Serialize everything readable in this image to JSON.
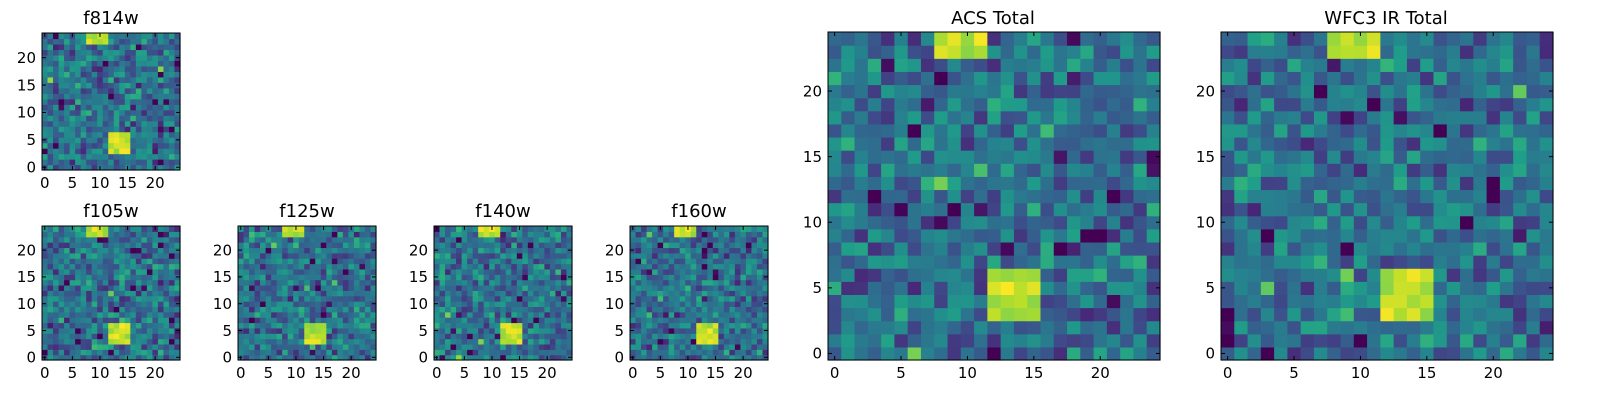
{
  "chart_data": [
    {
      "type": "heatmap",
      "title": "f814w",
      "colormap": "viridis",
      "grid_size": [
        25,
        25
      ],
      "xticks": [
        "0",
        "5",
        "10",
        "15",
        "20"
      ],
      "yticks": [
        "0",
        "5",
        "10",
        "15",
        "20"
      ],
      "xlim": [
        -0.5,
        24.5
      ],
      "ylim": [
        -0.5,
        24.5
      ],
      "grid": false,
      "bright_regions": [
        {
          "x": [
            8,
            11
          ],
          "y": [
            23,
            24
          ]
        },
        {
          "x": [
            12,
            15
          ],
          "y": [
            3,
            6
          ]
        }
      ]
    },
    {
      "type": "heatmap",
      "title": "f105w",
      "colormap": "viridis",
      "grid_size": [
        25,
        25
      ],
      "xticks": [
        "0",
        "5",
        "10",
        "15",
        "20"
      ],
      "yticks": [
        "0",
        "5",
        "10",
        "15",
        "20"
      ],
      "xlim": [
        -0.5,
        24.5
      ],
      "ylim": [
        -0.5,
        24.5
      ],
      "grid": false,
      "bright_regions": [
        {
          "x": [
            8,
            11
          ],
          "y": [
            23,
            24
          ]
        },
        {
          "x": [
            12,
            15
          ],
          "y": [
            3,
            6
          ]
        }
      ]
    },
    {
      "type": "heatmap",
      "title": "f125w",
      "colormap": "viridis",
      "grid_size": [
        25,
        25
      ],
      "xticks": [
        "0",
        "5",
        "10",
        "15",
        "20"
      ],
      "yticks": [
        "0",
        "5",
        "10",
        "15",
        "20"
      ],
      "xlim": [
        -0.5,
        24.5
      ],
      "ylim": [
        -0.5,
        24.5
      ],
      "grid": false,
      "bright_regions": [
        {
          "x": [
            8,
            11
          ],
          "y": [
            23,
            24
          ]
        },
        {
          "x": [
            12,
            15
          ],
          "y": [
            3,
            6
          ]
        }
      ]
    },
    {
      "type": "heatmap",
      "title": "f140w",
      "colormap": "viridis",
      "grid_size": [
        25,
        25
      ],
      "xticks": [
        "0",
        "5",
        "10",
        "15",
        "20"
      ],
      "yticks": [
        "0",
        "5",
        "10",
        "15",
        "20"
      ],
      "xlim": [
        -0.5,
        24.5
      ],
      "ylim": [
        -0.5,
        24.5
      ],
      "grid": false,
      "bright_regions": [
        {
          "x": [
            8,
            11
          ],
          "y": [
            23,
            24
          ]
        },
        {
          "x": [
            12,
            15
          ],
          "y": [
            3,
            6
          ]
        }
      ]
    },
    {
      "type": "heatmap",
      "title": "f160w",
      "colormap": "viridis",
      "grid_size": [
        25,
        25
      ],
      "xticks": [
        "0",
        "5",
        "10",
        "15",
        "20"
      ],
      "yticks": [
        "0",
        "5",
        "10",
        "15",
        "20"
      ],
      "xlim": [
        -0.5,
        24.5
      ],
      "ylim": [
        -0.5,
        24.5
      ],
      "grid": false,
      "bright_regions": [
        {
          "x": [
            8,
            11
          ],
          "y": [
            23,
            24
          ]
        },
        {
          "x": [
            12,
            15
          ],
          "y": [
            3,
            6
          ]
        }
      ]
    },
    {
      "type": "heatmap",
      "title": "ACS Total",
      "colormap": "viridis",
      "grid_size": [
        25,
        25
      ],
      "xticks": [
        "0",
        "5",
        "10",
        "15",
        "20"
      ],
      "yticks": [
        "0",
        "5",
        "10",
        "15",
        "20"
      ],
      "xlim": [
        -0.5,
        24.5
      ],
      "ylim": [
        -0.5,
        24.5
      ],
      "grid": false,
      "bright_regions": [
        {
          "x": [
            8,
            11
          ],
          "y": [
            23,
            24
          ]
        },
        {
          "x": [
            12,
            15
          ],
          "y": [
            3,
            6
          ]
        }
      ]
    },
    {
      "type": "heatmap",
      "title": "WFC3 IR Total",
      "colormap": "viridis",
      "grid_size": [
        25,
        25
      ],
      "xticks": [
        "0",
        "5",
        "10",
        "15",
        "20"
      ],
      "yticks": [
        "0",
        "5",
        "10",
        "15",
        "20"
      ],
      "xlim": [
        -0.5,
        24.5
      ],
      "ylim": [
        -0.5,
        24.5
      ],
      "grid": false,
      "bright_regions": [
        {
          "x": [
            8,
            11
          ],
          "y": [
            23,
            24
          ]
        },
        {
          "x": [
            12,
            15
          ],
          "y": [
            3,
            6
          ]
        }
      ]
    }
  ]
}
